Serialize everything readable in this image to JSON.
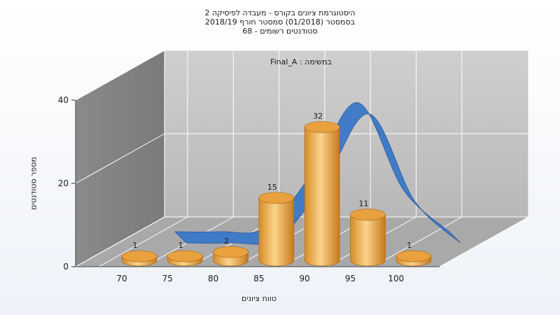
{
  "chart_data": {
    "type": "bar",
    "title": [
      "היסטוגרמת ציונים בקורס - מעבדה לפיסיקה 2",
      "בסמסטר  (01/2018)  סמסטר חורף 2018/19",
      "סטודנטים רשומים - 68"
    ],
    "annotation": "במשימה : Final_A",
    "xlabel": "טווח ציונים",
    "ylabel": "מספר סטודנטים",
    "categories": [
      "70",
      "75",
      "80",
      "85",
      "90",
      "95",
      "100"
    ],
    "values": [
      1,
      1,
      2,
      15,
      32,
      11,
      1
    ],
    "x_ticks": [
      "70",
      "75",
      "80",
      "85",
      "90",
      "95",
      "100"
    ],
    "y_ticks": [
      "0",
      "20",
      "40"
    ],
    "ylim": [
      0,
      40
    ],
    "grid": true,
    "overlay_curve": true,
    "bar_color": "#e8a440",
    "curve_color": "#3a78c8"
  }
}
